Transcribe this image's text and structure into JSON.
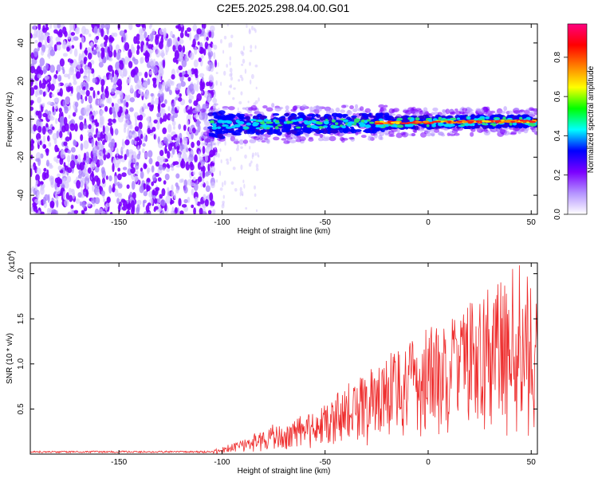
{
  "title": "C2E5.2025.298.04.00.G01",
  "chart_data": [
    {
      "type": "heatmap",
      "title": "C2E5.2025.298.04.00.G01",
      "xlabel": "Height of straight line (km)",
      "ylabel": "Frequency (Hz)",
      "xlim": [
        -193,
        53
      ],
      "ylim": [
        -50,
        50
      ],
      "xticks": [
        -150,
        -100,
        -50,
        0,
        50
      ],
      "yticks": [
        -40,
        -20,
        0,
        20,
        40
      ],
      "xtick_labels": [
        "-150",
        "-100",
        "-50",
        "0",
        "50"
      ],
      "ytick_labels": [
        "-40",
        "-20",
        "0",
        "20",
        "40"
      ],
      "noise_region_x": [
        -193,
        -103
      ],
      "signal_region_x": [
        -110,
        53
      ],
      "signal_center_freq_start": -3,
      "signal_center_freq_end": -1,
      "colorbar": {
        "label": "Normalized spectral amplitude",
        "range": [
          0,
          0.97
        ],
        "ticks": [
          0,
          0.2,
          0.4,
          0.6,
          0.8
        ],
        "tick_labels": [
          "0.0",
          "0.2",
          "0.4",
          "0.6",
          "0.8"
        ],
        "colors": [
          "#ffffff",
          "#b493ff",
          "#7b00ff",
          "#0000ff",
          "#00ffff",
          "#00ff00",
          "#ffff00",
          "#ff8000",
          "#ff0000",
          "#ff0080"
        ]
      }
    },
    {
      "type": "line",
      "xlabel": "Height of straight line (km)",
      "ylabel": "SNR (10 * v/v)",
      "multiplier_label": "(x10",
      "multiplier_exp": "4",
      "xlim": [
        -193,
        53
      ],
      "ylim": [
        0,
        2.12
      ],
      "xticks": [
        -150,
        -100,
        -50,
        0,
        50
      ],
      "yticks": [
        0.5,
        1.0,
        1.5,
        2.0
      ],
      "xtick_labels": [
        "-150",
        "-100",
        "-50",
        "0",
        "50"
      ],
      "ytick_labels": [
        "0.5",
        "1.0",
        "1.5",
        "2.0"
      ],
      "line_color": "#ee2a2a",
      "series": [
        {
          "name": "SNR",
          "x": [
            -193,
            -180,
            -160,
            -140,
            -120,
            -105,
            -100,
            -95,
            -90,
            -85,
            -80,
            -75,
            -70,
            -65,
            -60,
            -55,
            -50,
            -45,
            -40,
            -35,
            -30,
            -25,
            -20,
            -15,
            -10,
            -5,
            0,
            5,
            10,
            15,
            20,
            25,
            30,
            35,
            40,
            45,
            50,
            53
          ],
          "envelope": [
            0.02,
            0.02,
            0.02,
            0.02,
            0.03,
            0.04,
            0.08,
            0.12,
            0.16,
            0.22,
            0.3,
            0.35,
            0.28,
            0.38,
            0.45,
            0.5,
            0.55,
            0.65,
            0.78,
            0.82,
            0.9,
            1.05,
            1.1,
            1.25,
            1.2,
            1.35,
            1.4,
            1.45,
            1.5,
            1.6,
            1.72,
            1.85,
            1.95,
            1.9,
            2.05,
            2.1,
            1.95,
            1.7
          ]
        }
      ]
    }
  ]
}
